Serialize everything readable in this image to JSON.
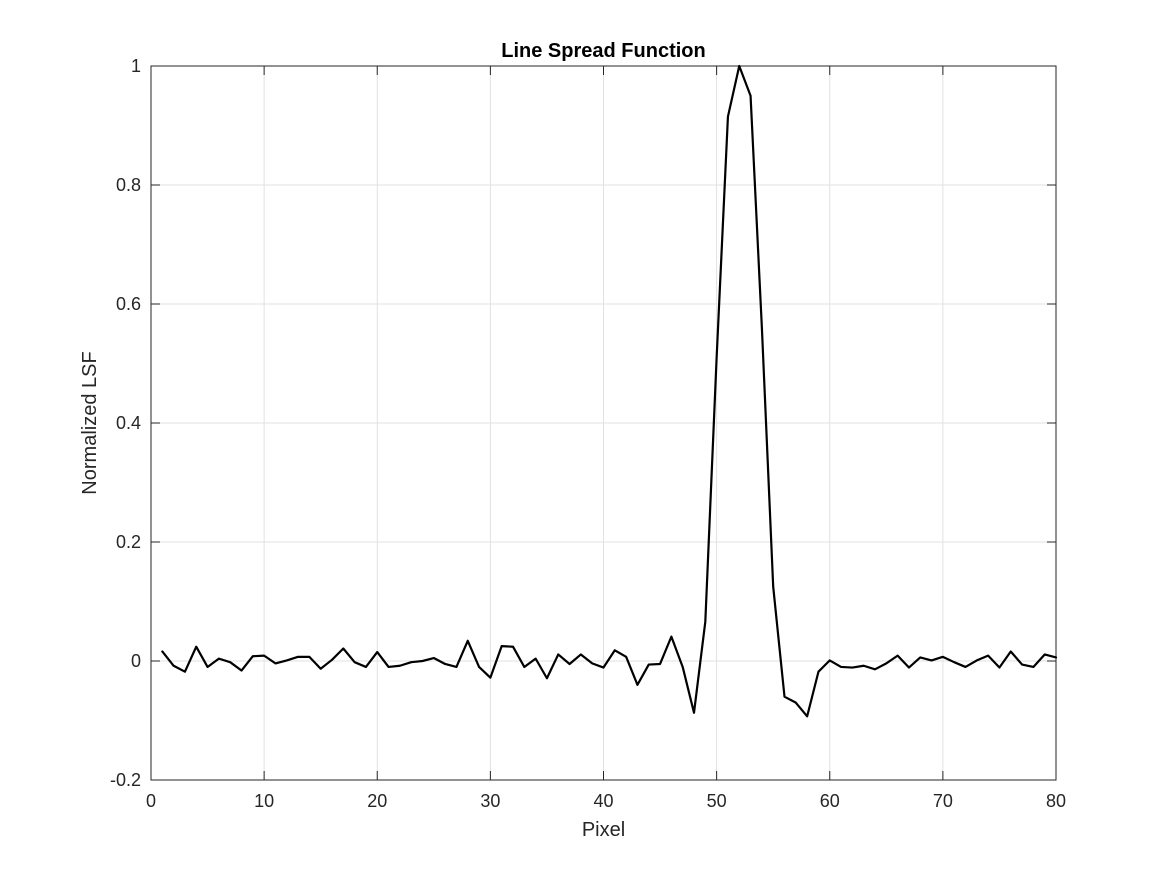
{
  "chart_data": {
    "type": "line",
    "title": "Line Spread Function",
    "xlabel": "Pixel",
    "ylabel": "Normalized LSF",
    "xlim": [
      0,
      80
    ],
    "ylim": [
      -0.2,
      1
    ],
    "xticks": [
      0,
      10,
      20,
      30,
      40,
      50,
      60,
      70,
      80
    ],
    "xtick_labels": [
      "0",
      "10",
      "20",
      "30",
      "40",
      "50",
      "60",
      "70",
      "80"
    ],
    "yticks": [
      -0.2,
      0,
      0.2,
      0.4,
      0.6,
      0.8,
      1
    ],
    "ytick_labels": [
      "-0.2",
      "0",
      "0.2",
      "0.4",
      "0.6",
      "0.8",
      "1"
    ],
    "grid": true,
    "series": [
      {
        "color": "#000000",
        "x": [
          1,
          2,
          3,
          4,
          5,
          6,
          7,
          8,
          9,
          10,
          11,
          12,
          13,
          14,
          15,
          16,
          17,
          18,
          19,
          20,
          21,
          22,
          23,
          24,
          25,
          26,
          27,
          28,
          29,
          30,
          31,
          32,
          33,
          34,
          35,
          36,
          37,
          38,
          39,
          40,
          41,
          42,
          43,
          44,
          45,
          46,
          47,
          48,
          49,
          50,
          51,
          52,
          53,
          54,
          55,
          56,
          57,
          58,
          59,
          60,
          61,
          62,
          63,
          64,
          65,
          66,
          67,
          68,
          69,
          70,
          71,
          72,
          73,
          74,
          75,
          76,
          77,
          78,
          79,
          80
        ],
        "y": [
          0.016,
          -0.008,
          -0.018,
          0.024,
          -0.01,
          0.004,
          -0.002,
          -0.016,
          0.008,
          0.009,
          -0.004,
          0.001,
          0.007,
          0.007,
          -0.013,
          0.002,
          0.021,
          -0.002,
          -0.01,
          0.015,
          -0.01,
          -0.008,
          -0.002,
          0.0,
          0.005,
          -0.005,
          -0.01,
          0.034,
          -0.01,
          -0.028,
          0.025,
          0.024,
          -0.01,
          0.004,
          -0.029,
          0.011,
          -0.005,
          0.011,
          -0.004,
          -0.011,
          0.018,
          0.007,
          -0.04,
          -0.006,
          -0.005,
          0.041,
          -0.01,
          -0.087,
          0.066,
          0.51,
          0.915,
          1.0,
          0.95,
          0.56,
          0.125,
          -0.06,
          -0.07,
          -0.093,
          -0.018,
          0.001,
          -0.01,
          -0.011,
          -0.008,
          -0.014,
          -0.004,
          0.009,
          -0.011,
          0.006,
          0.001,
          0.007,
          -0.002,
          -0.01,
          0.001,
          0.009,
          -0.011,
          0.016,
          -0.006,
          -0.01,
          0.011,
          0.006
        ]
      }
    ]
  }
}
